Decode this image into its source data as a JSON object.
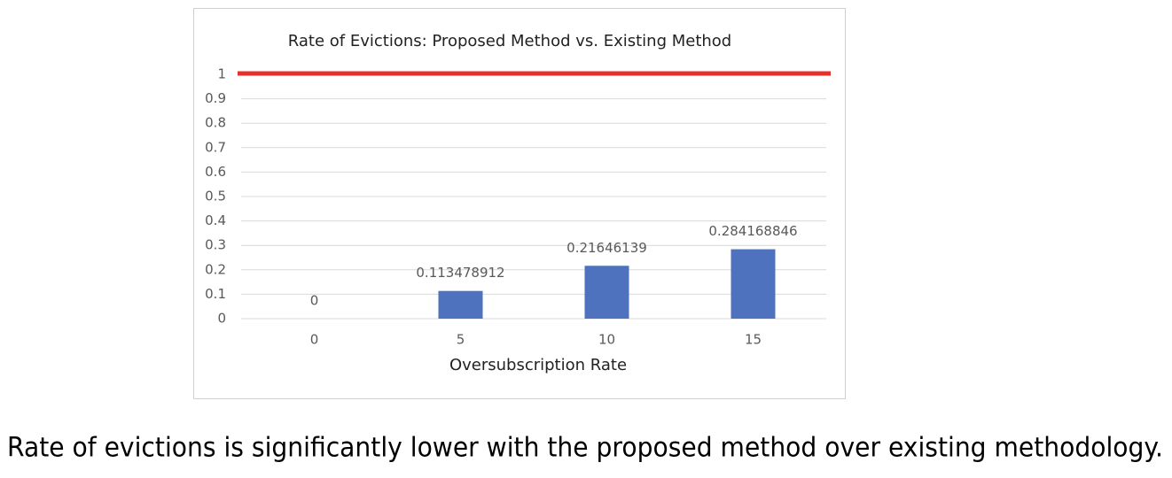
{
  "chart_data": {
    "type": "bar",
    "title": "Rate of Evictions: Proposed Method vs. Existing Method",
    "x_label": "Oversubscription Rate",
    "categories": [
      "0",
      "5",
      "10",
      "15"
    ],
    "values": [
      0,
      0.113478912,
      0.21646139,
      0.284168846
    ],
    "color": "#4f72be",
    "reference_line": {
      "value": 1,
      "color": "#e8302a"
    },
    "ylim": [
      0,
      1
    ],
    "yticks": [
      0,
      0.1,
      0.2,
      0.3,
      0.4,
      0.5,
      0.6,
      0.7,
      0.8,
      0.9,
      1
    ],
    "grid": true
  },
  "caption": "Rate of evictions is significantly lower with the proposed method over existing methodology."
}
